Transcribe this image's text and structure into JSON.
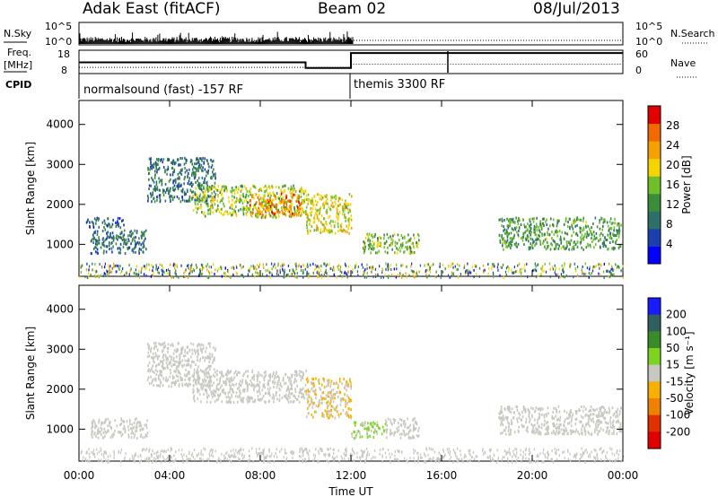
{
  "header": {
    "title": "Adak East (fitACF)",
    "beam": "Beam 02",
    "date": "08/Jul/2013"
  },
  "nsky_panel": {
    "left_label": "N.Sky",
    "right_label": "N.Search",
    "left_ticks": [
      "10^5",
      "10^0"
    ],
    "right_ticks": [
      "10^5",
      "10^0"
    ]
  },
  "freq_panel": {
    "left_label": "Freq.",
    "left_unit": "[MHz]",
    "right_label": "Nave",
    "left_ticks": [
      "18",
      "8"
    ],
    "right_ticks": [
      "60",
      "0"
    ],
    "freq_segments": [
      {
        "from": 0,
        "to": 10.0,
        "mhz": 12.8
      },
      {
        "from": 10.0,
        "to": 12.0,
        "mhz": 10.4
      },
      {
        "from": 12.0,
        "to": 24.0,
        "mhz": 16.8
      }
    ],
    "nave_segments": [
      {
        "from": 0,
        "to": 12.0,
        "value": 16
      },
      {
        "from": 12.0,
        "to": 24.0,
        "value": 24
      }
    ]
  },
  "cpid": {
    "label": "CPID",
    "modes": [
      {
        "start_hour": 0.0,
        "name": "normalsound (fast) -157 RF"
      },
      {
        "start_hour": 12.0,
        "name": "themis 3300 RF"
      }
    ]
  },
  "colors": {
    "power_scale": [
      "#0000ff",
      "#1b3fb0",
      "#2f6f6a",
      "#3b8c3b",
      "#6fbf2a",
      "#f5d500",
      "#f5a000",
      "#f06a00",
      "#e00000"
    ],
    "velocity_scale": [
      "#1a1aff",
      "#2f5f5f",
      "#3a8c2a",
      "#7ed321",
      "#c8c8c0",
      "#f5b000",
      "#f08000",
      "#e03000",
      "#e00000"
    ]
  },
  "chart_data": [
    {
      "type": "heatmap",
      "title": "Power",
      "ylabel": "Slant Range [km]",
      "xlabel": "Time UT",
      "xlim": [
        0,
        24
      ],
      "ylim": [
        200,
        4600
      ],
      "x_ticks": [
        "00:00",
        "04:00",
        "08:00",
        "12:00",
        "16:00",
        "20:00",
        "00:00"
      ],
      "y_ticks": [
        "1000",
        "2000",
        "3000",
        "4000"
      ],
      "colorbar": {
        "label": "Power [dB]",
        "ticks": [
          "4",
          "8",
          "12",
          "16",
          "20",
          "24",
          "28"
        ],
        "range": [
          0,
          30
        ]
      },
      "features": [
        {
          "t0": 0.5,
          "t1": 3.0,
          "r0": 800,
          "r1": 1400,
          "level": 8
        },
        {
          "t0": 0.3,
          "t1": 2.0,
          "r0": 1450,
          "r1": 1700,
          "level": 6
        },
        {
          "t0": 3.0,
          "t1": 6.0,
          "r0": 2100,
          "r1": 3200,
          "level": 8
        },
        {
          "t0": 5.0,
          "t1": 10.0,
          "r0": 1700,
          "r1": 2500,
          "level": 16
        },
        {
          "t0": 7.5,
          "t1": 9.8,
          "r0": 1750,
          "r1": 2300,
          "level": 24
        },
        {
          "t0": 10.0,
          "t1": 12.0,
          "r0": 1300,
          "r1": 2300,
          "level": 18
        },
        {
          "t0": 12.5,
          "t1": 15.0,
          "r0": 800,
          "r1": 1300,
          "level": 14
        },
        {
          "t0": 18.5,
          "t1": 23.9,
          "r0": 900,
          "r1": 1700,
          "level": 12
        }
      ]
    },
    {
      "type": "heatmap",
      "title": "Velocity",
      "ylabel": "Slant Range [km]",
      "xlabel": "Time UT",
      "xlim": [
        0,
        24
      ],
      "ylim": [
        200,
        4600
      ],
      "x_ticks": [
        "00:00",
        "04:00",
        "08:00",
        "12:00",
        "16:00",
        "20:00",
        "00:00"
      ],
      "y_ticks": [
        "1000",
        "2000",
        "3000",
        "4000"
      ],
      "colorbar": {
        "label": "Velocity [m s⁻¹]",
        "ticks": [
          "200",
          "100",
          "50",
          "15",
          "-15",
          "-50",
          "-100",
          "-200"
        ],
        "range": [
          -250,
          250
        ]
      },
      "features": [
        {
          "t0": 0.5,
          "t1": 3.0,
          "r0": 800,
          "r1": 1300,
          "level": 0
        },
        {
          "t0": 3.0,
          "t1": 6.0,
          "r0": 2100,
          "r1": 3200,
          "level": 0
        },
        {
          "t0": 5.0,
          "t1": 10.0,
          "r0": 1700,
          "r1": 2500,
          "level": -10
        },
        {
          "t0": 10.0,
          "t1": 12.0,
          "r0": 1300,
          "r1": 2300,
          "level": -30
        },
        {
          "t0": 12.0,
          "t1": 13.5,
          "r0": 800,
          "r1": 1200,
          "level": 40
        },
        {
          "t0": 13.5,
          "t1": 15.0,
          "r0": 800,
          "r1": 1300,
          "level": 0
        },
        {
          "t0": 18.5,
          "t1": 23.9,
          "r0": 900,
          "r1": 1600,
          "level": 0
        }
      ]
    }
  ]
}
